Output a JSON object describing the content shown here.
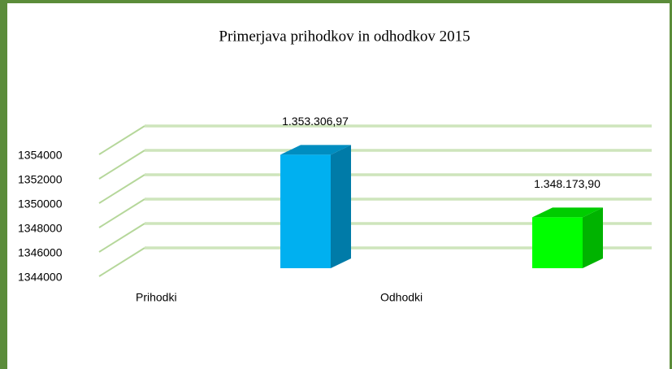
{
  "chart_data": {
    "type": "bar",
    "title": "Primerjava prihodkov in odhodkov 2015",
    "categories": [
      "Prihodki",
      "Odhodki"
    ],
    "values": [
      1353306.97,
      1348173.9
    ],
    "value_labels": [
      "1.353.306,97",
      "1.348.173,90"
    ],
    "colors": [
      "#00b0f0",
      "#00ff00"
    ],
    "ylim": [
      1344000,
      1354000
    ],
    "yticks": [
      1344000,
      1346000,
      1348000,
      1350000,
      1352000,
      1354000
    ],
    "grid": true
  }
}
